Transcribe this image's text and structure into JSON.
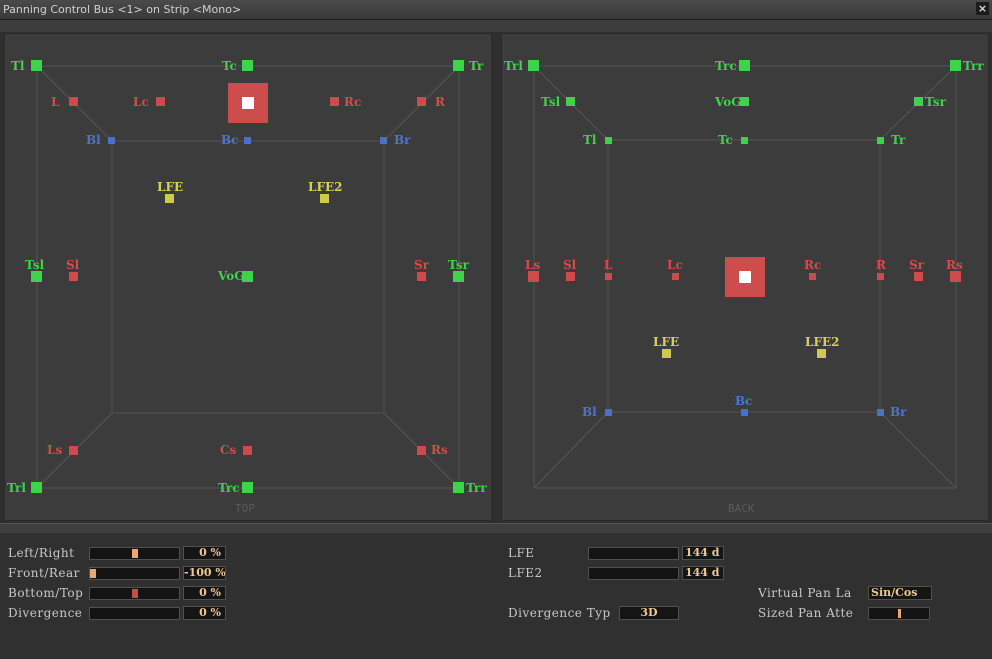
{
  "window": {
    "title": "Panning Control Bus <1> on Strip <Mono>",
    "close_glyph": "×"
  },
  "top_view": {
    "caption": "TOP",
    "speakers": {
      "tl": "Tl",
      "tc": "Tc",
      "tr": "Tr",
      "l": "L",
      "lc": "Lc",
      "rc": "Rc",
      "r": "R",
      "bl": "Bl",
      "bc": "Bc",
      "br": "Br",
      "lfe": "LFE",
      "lfe2": "LFE2",
      "tsl": "Tsl",
      "sl": "Sl",
      "vog": "VoG",
      "sr": "Sr",
      "tsr": "Tsr",
      "ls": "Ls",
      "cs": "Cs",
      "rs": "Rs",
      "trl": "Trl",
      "trc": "Trc",
      "trr": "Trr"
    }
  },
  "back_view": {
    "caption": "BACK",
    "speakers": {
      "trl": "Trl",
      "trc": "Trc",
      "trr": "Trr",
      "tsl": "Tsl",
      "vog": "VoG",
      "tsr": "Tsr",
      "tl": "Tl",
      "tc": "Tc",
      "tr": "Tr",
      "ls": "Ls",
      "sl": "Sl",
      "l": "L",
      "lc": "Lc",
      "rc": "Rc",
      "r": "R",
      "sr": "Sr",
      "rs": "Rs",
      "lfe": "LFE",
      "lfe2": "LFE2",
      "bl": "Bl",
      "bc": "Bc",
      "br": "Br"
    }
  },
  "controls": {
    "left_right": {
      "label": "Left/Right",
      "value": "0 %",
      "position": 0.5
    },
    "front_rear": {
      "label": "Front/Rear",
      "value": "-100 %",
      "position": 0.0
    },
    "bottom_top": {
      "label": "Bottom/Top",
      "value": "0 %",
      "position": 0.5
    },
    "divergence": {
      "label": "Divergence",
      "value": "0 %",
      "position": 0.0
    },
    "lfe": {
      "label": "LFE",
      "value": "144 d"
    },
    "lfe2": {
      "label": "LFE2",
      "value": "144 d"
    },
    "divergence_type": {
      "label": "Divergence Typ",
      "value": "3D"
    },
    "virtual_pan_law": {
      "label": "Virtual Pan La",
      "value": "Sin/Cos"
    },
    "sized_pan_atten": {
      "label": "Sized Pan Atte",
      "position": 0.5
    }
  },
  "colors": {
    "green": "#3fd24b",
    "red": "#cf4a4a",
    "blue": "#4a70cf",
    "yellow": "#cfca4f",
    "value_text": "#f0c890",
    "orange_thumb": "#e8a870",
    "red_thumb": "#d04848"
  }
}
